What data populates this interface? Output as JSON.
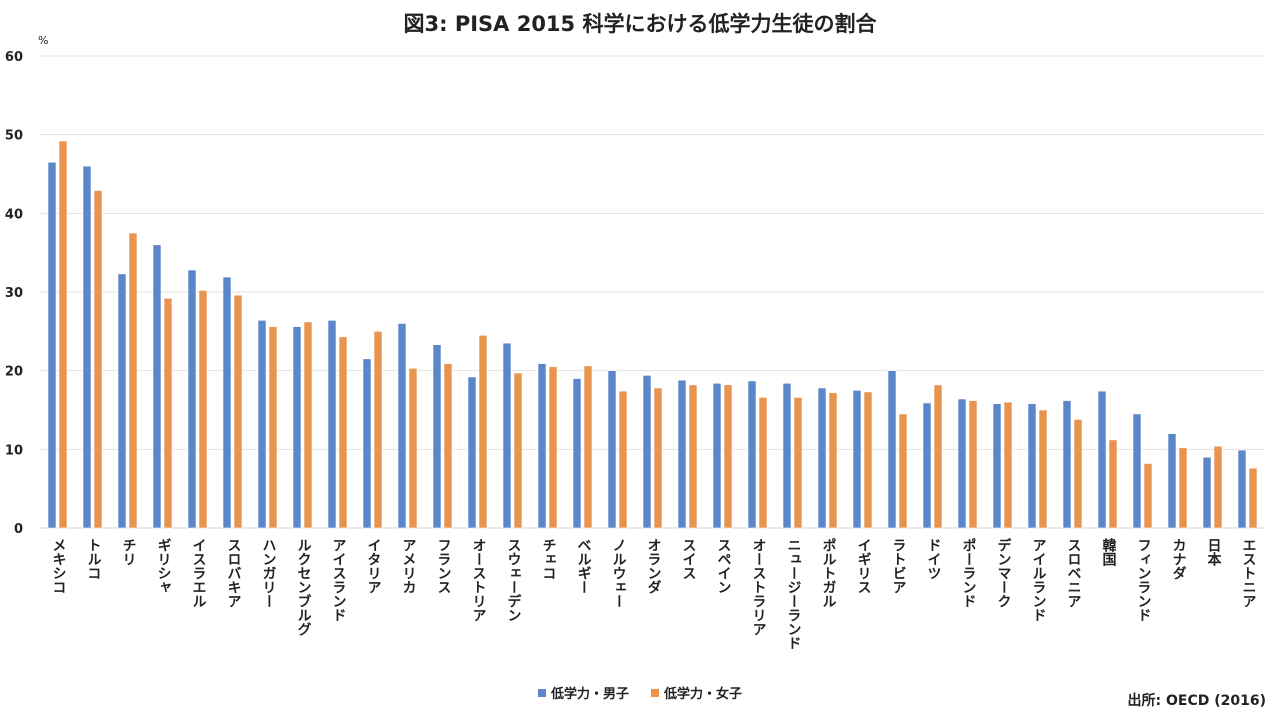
{
  "chart_data": {
    "type": "bar",
    "title": "図3: PISA 2015 科学における低学力生徒の割合",
    "ylabel": "%",
    "xlabel": "",
    "ylim": [
      0,
      60
    ],
    "yticks": [
      0,
      10,
      20,
      30,
      40,
      50,
      60
    ],
    "grid": true,
    "legend_position": "bottom",
    "categories": [
      "メキシコ",
      "トルコ",
      "チリ",
      "ギリシャ",
      "イスラエル",
      "スロバキア",
      "ハンガリー",
      "ルクセンブルグ",
      "アイスランド",
      "イタリア",
      "アメリカ",
      "フランス",
      "オーストリア",
      "スウェーデン",
      "チェコ",
      "ベルギー",
      "ノルウェー",
      "オランダ",
      "スイス",
      "スペイン",
      "オーストラリア",
      "ニュージーランド",
      "ポルトガル",
      "イギリス",
      "ラトビア",
      "ドイツ",
      "ポーランド",
      "デンマーク",
      "アイルランド",
      "スロベニア",
      "韓国",
      "フィンランド",
      "カナダ",
      "日本",
      "エストニア"
    ],
    "series": [
      {
        "name": "低学力・男子",
        "color": "#5b86c9",
        "values": [
          46.5,
          46.0,
          32.3,
          36.0,
          32.8,
          31.9,
          26.4,
          25.6,
          26.4,
          21.5,
          26.0,
          23.3,
          19.2,
          23.5,
          20.9,
          19.0,
          20.0,
          19.4,
          18.8,
          18.4,
          18.7,
          18.4,
          17.8,
          17.5,
          20.0,
          15.9,
          16.4,
          15.8,
          15.8,
          16.2,
          17.4,
          14.5,
          12.0,
          9.0,
          9.9
        ]
      },
      {
        "name": "低学力・女子",
        "color": "#e8944e",
        "values": [
          49.2,
          42.9,
          37.5,
          29.2,
          30.2,
          29.6,
          25.6,
          26.2,
          24.3,
          25.0,
          20.3,
          20.9,
          24.5,
          19.7,
          20.5,
          20.6,
          17.4,
          17.8,
          18.2,
          18.2,
          16.6,
          16.6,
          17.2,
          17.3,
          14.5,
          18.2,
          16.2,
          16.0,
          15.0,
          13.8,
          11.2,
          8.2,
          10.2,
          10.4,
          7.6
        ]
      }
    ],
    "source": "出所: OECD (2016)"
  }
}
